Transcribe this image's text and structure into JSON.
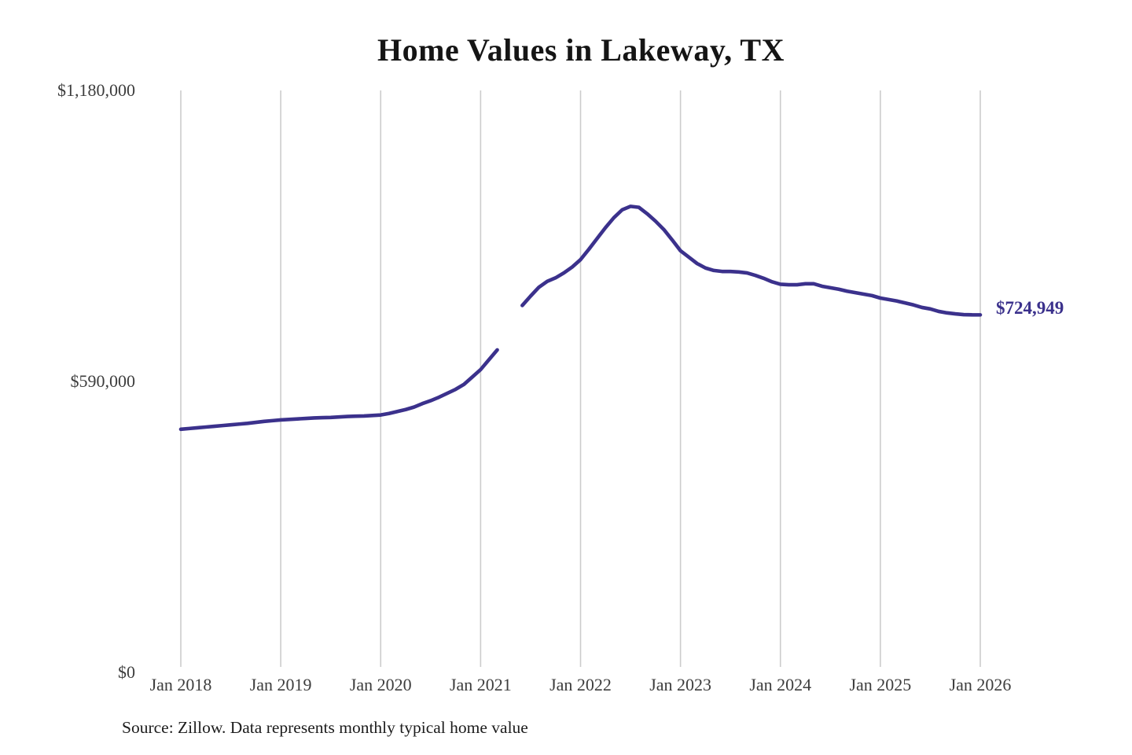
{
  "title": "Home Values in Lakeway, TX",
  "source_note": "Source: Zillow. Data represents monthly typical home value",
  "end_label": "$724,949",
  "colors": {
    "line": "#3b318c",
    "grid": "#cccccc",
    "axis_text": "#3d3d3d",
    "title_text": "#151515",
    "end_label_text": "#3b318c"
  },
  "chart_data": {
    "type": "line",
    "title": "Home Values in Lakeway, TX",
    "xlabel": "",
    "ylabel": "",
    "ylim": [
      0,
      1180000
    ],
    "x_months_range": [
      0,
      96
    ],
    "grid": "vertical-only",
    "legend": "none",
    "x_ticks": [
      "Jan 2018",
      "Jan 2019",
      "Jan 2020",
      "Jan 2021",
      "Jan 2022",
      "Jan 2023",
      "Jan 2024",
      "Jan 2025",
      "Jan 2026"
    ],
    "y_ticks": [
      {
        "value": 0,
        "label": "$0"
      },
      {
        "value": 590000,
        "label": "$590,000"
      },
      {
        "value": 1180000,
        "label": "$1,180,000"
      }
    ],
    "final_value": 724949,
    "note": "line has a data gap between Mar 2021 and Jun 2021",
    "series": [
      {
        "name": "Monthly typical home value",
        "segments": [
          {
            "start_month": 0,
            "start_label": "Jan 2018",
            "values": [
              493000,
              494500,
              496000,
              497500,
              499000,
              500500,
              502000,
              503500,
              505000,
              507000,
              509000,
              510500,
              512000,
              513000,
              514000,
              515000,
              516000,
              516500,
              517000,
              518000,
              519000,
              519500,
              520000,
              521000,
              522000,
              525000,
              529000,
              533000,
              538000,
              545000,
              551000,
              558000,
              566000,
              574000,
              584000,
              599000,
              614000,
              634000,
              654000
            ]
          },
          {
            "start_month": 41,
            "start_label": "Jun 2021",
            "values": [
              744000,
              763000,
              781000,
              793000,
              800000,
              810000,
              822000,
              837000,
              858000,
              880000,
              902000,
              922000,
              938000,
              945000,
              943000,
              930000,
              915000,
              898000,
              877000,
              855000,
              842000,
              829000,
              820000,
              815000,
              813000,
              813000,
              812000,
              810000,
              805000,
              799000,
              792000,
              787000,
              786000,
              786000,
              788000,
              788000,
              783000,
              780000,
              777000,
              773000,
              770000,
              767000,
              764000,
              759000,
              756000,
              753000,
              749000,
              745000,
              740000,
              737000,
              732000,
              729000,
              727000,
              725500,
              725000,
              724949
            ]
          }
        ]
      }
    ]
  }
}
